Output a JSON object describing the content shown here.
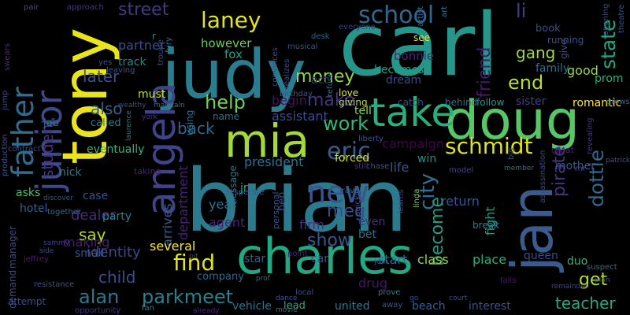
{
  "words": [
    {
      "text": "brian",
      "color": "#2b7a8e"
    },
    {
      "text": "carl",
      "color": "#26958a"
    },
    {
      "text": "judy",
      "color": "#2a7d8e"
    },
    {
      "text": "tony",
      "color": "#eae51a"
    },
    {
      "text": "doug",
      "color": "#57c666"
    },
    {
      "text": "charles",
      "color": "#23a884"
    },
    {
      "text": "jan",
      "color": "#3a5b8c"
    },
    {
      "text": "mia",
      "color": "#a3da37"
    },
    {
      "text": "take",
      "color": "#28ae80"
    },
    {
      "text": "angela",
      "color": "#404387"
    },
    {
      "text": "junior",
      "color": "#3f4889"
    },
    {
      "text": "father",
      "color": "#2f6c8e"
    },
    {
      "text": "new",
      "color": "#3a548c"
    },
    {
      "text": "school",
      "color": "#31688e"
    },
    {
      "text": "eric",
      "color": "#375b8d"
    },
    {
      "text": "schmidt",
      "color": "#dde318"
    },
    {
      "text": "find",
      "color": "#e2e418"
    },
    {
      "text": "laney",
      "color": "#e5e419"
    },
    {
      "text": "dottie",
      "color": "#31688e"
    },
    {
      "text": "help",
      "color": "#6ece58"
    },
    {
      "text": "work",
      "color": "#35b779"
    },
    {
      "text": "money",
      "color": "#95d840"
    },
    {
      "text": "end",
      "color": "#bade28"
    },
    {
      "text": "show",
      "color": "#39558c"
    },
    {
      "text": "city",
      "color": "#2c718e"
    },
    {
      "text": "make",
      "color": "#453581"
    },
    {
      "text": "street",
      "color": "#453781"
    },
    {
      "text": "li",
      "color": "#433e85"
    },
    {
      "text": "state",
      "color": "#22a785"
    },
    {
      "text": "friend",
      "color": "#48196b"
    },
    {
      "text": "pirate",
      "color": "#46337f"
    },
    {
      "text": "gang",
      "color": "#a0da39"
    },
    {
      "text": "meg",
      "color": "#3e4989"
    },
    {
      "text": "get",
      "color": "#b5de2b"
    },
    {
      "text": "alan",
      "color": "#2a788e"
    },
    {
      "text": "parkmeet",
      "color": "#26828e"
    },
    {
      "text": "student",
      "color": "#46327e"
    },
    {
      "text": "back",
      "color": "#32648e"
    },
    {
      "text": "also",
      "color": "#34618d"
    },
    {
      "text": "later",
      "color": "#3b528b"
    },
    {
      "text": "child",
      "color": "#3e4c8a"
    },
    {
      "text": "say",
      "color": "#b8de29"
    },
    {
      "text": "become",
      "color": "#1e9c89"
    },
    {
      "text": "teacher",
      "color": "#22a884"
    },
    {
      "text": "dealer",
      "color": "#482979"
    },
    {
      "text": "identity",
      "color": "#3f4788"
    },
    {
      "text": "making",
      "color": "#481c6e"
    },
    {
      "text": "president",
      "color": "#2e6f8e"
    },
    {
      "text": "year",
      "color": "#2c728e"
    },
    {
      "text": "agent",
      "color": "#482475"
    },
    {
      "text": "department",
      "color": "#482173"
    },
    {
      "text": "arrives",
      "color": "#365c8d"
    },
    {
      "text": "several",
      "color": "#fde725"
    },
    {
      "text": "small",
      "color": "#3b528b"
    },
    {
      "text": "class",
      "color": "#95d840"
    },
    {
      "text": "place",
      "color": "#27ad81"
    },
    {
      "text": "start",
      "color": "#2e6e8e"
    },
    {
      "text": "firm",
      "color": "#472f7d"
    },
    {
      "text": "drug",
      "color": "#471365"
    },
    {
      "text": "life",
      "color": "#3b528b"
    },
    {
      "text": "return",
      "color": "#39568c"
    },
    {
      "text": "fight",
      "color": "#1f9a8a"
    },
    {
      "text": "campaign",
      "color": "#440154"
    },
    {
      "text": "begin",
      "color": "#471063"
    },
    {
      "text": "assistant",
      "color": "#3d4d8a"
    },
    {
      "text": "romantic",
      "color": "#fde725"
    },
    {
      "text": "sister",
      "color": "#433d84"
    },
    {
      "text": "family",
      "color": "#2d718e"
    },
    {
      "text": "good",
      "color": "#9bd93c"
    },
    {
      "text": "prom",
      "color": "#29af7f"
    },
    {
      "text": "however",
      "color": "#6ccd5a"
    },
    {
      "text": "partner",
      "color": "#3d4e8a"
    },
    {
      "text": "fox",
      "color": "#20a486"
    },
    {
      "text": "track",
      "color": "#23888e"
    },
    {
      "text": "must",
      "color": "#c2df23"
    },
    {
      "text": "bonnie",
      "color": "#482878"
    },
    {
      "text": "becomes",
      "color": "#1f9f88"
    },
    {
      "text": "dream",
      "color": "#3e4a89"
    },
    {
      "text": "eventually",
      "color": "#31b57b"
    },
    {
      "text": "nick",
      "color": "#287c8e"
    },
    {
      "text": "asks",
      "color": "#4ac16d"
    },
    {
      "text": "hotel",
      "color": "#355f8d"
    },
    {
      "text": "party",
      "color": "#25838e"
    },
    {
      "text": "case",
      "color": "#3b528b"
    },
    {
      "text": "job",
      "color": "#2b748e"
    },
    {
      "text": "called",
      "color": "#287d8e"
    },
    {
      "text": "tell",
      "color": "#8ed645"
    },
    {
      "text": "forced",
      "color": "#d8e219"
    },
    {
      "text": "win",
      "color": "#21908d"
    },
    {
      "text": "mother",
      "color": "#39568c"
    },
    {
      "text": "queen",
      "color": "#3e4989"
    },
    {
      "text": "duo",
      "color": "#34b679"
    },
    {
      "text": "act",
      "color": "#46337f"
    },
    {
      "text": "bet",
      "color": "#2d708e"
    },
    {
      "text": "even",
      "color": "#472f7d"
    },
    {
      "text": "vehicle",
      "color": "#2c738e"
    },
    {
      "text": "lead",
      "color": "#25ab82"
    },
    {
      "text": "united",
      "color": "#2a778e"
    },
    {
      "text": "beach",
      "color": "#365d8d"
    },
    {
      "text": "interest",
      "color": "#3b528b"
    },
    {
      "text": "attempt",
      "color": "#3e4c8a"
    },
    {
      "text": "company",
      "color": "#31678e"
    },
    {
      "text": "demand",
      "color": "#3f4788"
    },
    {
      "text": "manager",
      "color": "#3f4889"
    },
    {
      "text": "star",
      "color": "#34618d"
    },
    {
      "text": "car",
      "color": "#3b528b"
    },
    {
      "text": "jr",
      "color": "#25ac82"
    },
    {
      "text": "ben",
      "color": "#3b518b"
    },
    {
      "text": "using",
      "color": "#2d718e"
    },
    {
      "text": "name",
      "color": "#2d708e"
    },
    {
      "text": "r",
      "color": "#27808e"
    },
    {
      "text": "message",
      "color": "#2b758e"
    },
    {
      "text": "book",
      "color": "#3e4a89"
    },
    {
      "text": "give",
      "color": "#3c508b"
    },
    {
      "text": "running",
      "color": "#3b528b"
    },
    {
      "text": "see",
      "color": "#e5e419"
    },
    {
      "text": "love",
      "color": "#eae51a"
    },
    {
      "text": "giving",
      "color": "#bade28"
    },
    {
      "text": "catch",
      "color": "#3d4e8a"
    },
    {
      "text": "behind",
      "color": "#2e6d8e"
    },
    {
      "text": "follow",
      "color": "#20938c"
    },
    {
      "text": "great",
      "color": "#482576"
    },
    {
      "text": "chase",
      "color": "#3b528b"
    },
    {
      "text": "still",
      "color": "#46307e"
    },
    {
      "text": "model",
      "color": "#3f4788"
    },
    {
      "text": "travel",
      "color": "#2f6c8e"
    },
    {
      "text": "taking",
      "color": "#482173"
    },
    {
      "text": "personal",
      "color": "#3a548c"
    },
    {
      "text": "desperate",
      "color": "#33638d"
    },
    {
      "text": "point",
      "color": "#482878"
    },
    {
      "text": "join",
      "color": "#3b528b"
    },
    {
      "text": "learns",
      "color": "#3e4a89"
    },
    {
      "text": "linda",
      "color": "#6ccd5a"
    },
    {
      "text": "break",
      "color": "#26828e"
    },
    {
      "text": "liberty",
      "color": "#3b528b"
    },
    {
      "text": "falls",
      "color": "#48186a"
    },
    {
      "text": "prove",
      "color": "#27808e"
    },
    {
      "text": "away",
      "color": "#3b528b"
    },
    {
      "text": "local",
      "color": "#3e4c8a"
    },
    {
      "text": "movie",
      "color": "#2c728e"
    },
    {
      "text": "fan",
      "color": "#2a788e"
    },
    {
      "text": "already",
      "color": "#482979"
    },
    {
      "text": "opportunity",
      "color": "#46327e"
    },
    {
      "text": "resistance",
      "color": "#3b528b"
    },
    {
      "text": "together",
      "color": "#2e6e8e"
    },
    {
      "text": "sammy",
      "color": "#404387"
    },
    {
      "text": "contract",
      "color": "#3f4889"
    },
    {
      "text": "production",
      "color": "#3b528b"
    },
    {
      "text": "jeffrey",
      "color": "#481e70"
    },
    {
      "text": "jump",
      "color": "#3f4788"
    },
    {
      "text": "swears",
      "color": "#472c7a"
    },
    {
      "text": "pair",
      "color": "#3e4a89"
    },
    {
      "text": "approach",
      "color": "#453781"
    },
    {
      "text": "yes",
      "color": "#3b528b"
    },
    {
      "text": "leaving",
      "color": "#3a548c"
    },
    {
      "text": "troupe",
      "color": "#3d4d8a"
    },
    {
      "text": "fury",
      "color": "#2d718e"
    },
    {
      "text": "desk",
      "color": "#33628d"
    },
    {
      "text": "musical",
      "color": "#3b528b"
    },
    {
      "text": "convinces",
      "color": "#3e4c8a"
    },
    {
      "text": "realizes",
      "color": "#3e4989"
    },
    {
      "text": "refuse",
      "color": "#2e6f8e"
    },
    {
      "text": "everyone",
      "color": "#433e85"
    },
    {
      "text": "birthday",
      "color": "#3a548c"
    },
    {
      "text": "art",
      "color": "#2a778e"
    },
    {
      "text": "artist",
      "color": "#33638d"
    },
    {
      "text": "theatre",
      "color": "#3b528b"
    },
    {
      "text": "opening",
      "color": "#3e4a89"
    },
    {
      "text": "wealthy",
      "color": "#3d4e8a"
    },
    {
      "text": "laurence",
      "color": "#2a788e"
    },
    {
      "text": "york",
      "color": "#472f7d"
    },
    {
      "text": "maintain",
      "color": "#2b748e"
    },
    {
      "text": "discover",
      "color": "#3b528b"
    },
    {
      "text": "side",
      "color": "#3e4c8a"
    },
    {
      "text": "prof",
      "color": "#2e6d8e"
    },
    {
      "text": "dance",
      "color": "#3b528b"
    },
    {
      "text": "pit",
      "color": "#3f4788"
    },
    {
      "text": "member",
      "color": "#2d708e"
    },
    {
      "text": "patrick",
      "color": "#3b528b"
    },
    {
      "text": "mr",
      "color": "#3e4c8a"
    },
    {
      "text": "grows",
      "color": "#2c718e"
    },
    {
      "text": "big",
      "color": "#3b528b"
    },
    {
      "text": "assassination",
      "color": "#3e4989"
    },
    {
      "text": "revealing",
      "color": "#46337f"
    },
    {
      "text": "remainder",
      "color": "#3f4889"
    },
    {
      "text": "suspect",
      "color": "#2e6e8e"
    },
    {
      "text": "plan",
      "color": "#3b528b"
    },
    {
      "text": "go",
      "color": "#3e4c8a"
    },
    {
      "text": "court",
      "color": "#3d4e8a"
    },
    {
      "text": "quickly",
      "color": "#3b528b"
    }
  ]
}
